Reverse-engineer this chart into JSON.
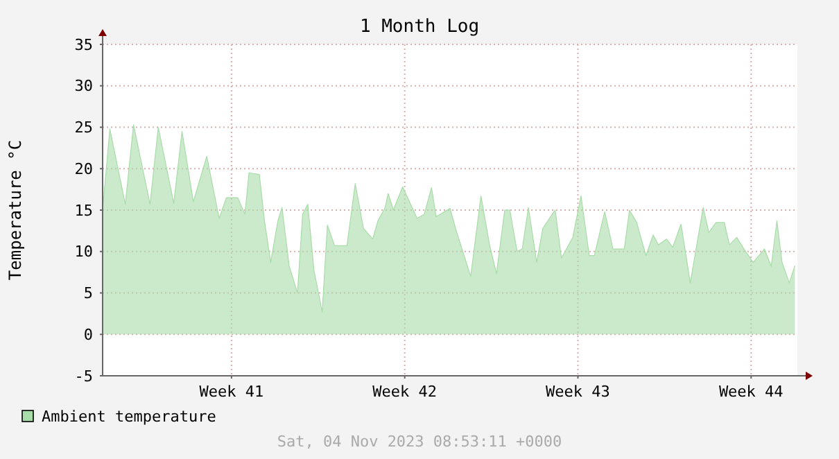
{
  "chart_data": {
    "type": "area",
    "title": "1 Month Log",
    "ylabel": "Temperature °C",
    "annotations": [
      "Sat, 04 Nov 2023 08:53:11 +0000"
    ],
    "xlim": [
      "2023-10-07T07:00",
      "2023-11-04T08:53"
    ],
    "xticks": [
      {
        "value": "2023-10-12T12:00",
        "label": "Week 41"
      },
      {
        "value": "2023-10-19T12:00",
        "label": "Week 42"
      },
      {
        "value": "2023-10-26T12:00",
        "label": "Week 43"
      },
      {
        "value": "2023-11-02T12:00",
        "label": "Week 44"
      }
    ],
    "ylim": [
      -5,
      35
    ],
    "yticks": [
      -5,
      0,
      5,
      10,
      15,
      20,
      25,
      30,
      35
    ],
    "grid": true,
    "legend": "bottom",
    "x": [
      "2023-10-07T07:00",
      "2023-10-07T14:00",
      "2023-10-08T05:00",
      "2023-10-08T13:00",
      "2023-10-09T05:00",
      "2023-10-09T13:00",
      "2023-10-10T04:00",
      "2023-10-10T12:00",
      "2023-10-10T23:00",
      "2023-10-11T12:00",
      "2023-10-12T00:00",
      "2023-10-12T07:00",
      "2023-10-12T18:00",
      "2023-10-13T01:00",
      "2023-10-13T05:00",
      "2023-10-13T15:00",
      "2023-10-13T20:00",
      "2023-10-14T02:00",
      "2023-10-14T09:00",
      "2023-10-14T13:00",
      "2023-10-14T20:00",
      "2023-10-15T04:00",
      "2023-10-15T09:00",
      "2023-10-15T14:00",
      "2023-10-15T20:00",
      "2023-10-16T04:00",
      "2023-10-16T09:00",
      "2023-10-16T16:00",
      "2023-10-17T04:00",
      "2023-10-17T12:00",
      "2023-10-17T20:00",
      "2023-10-18T05:00",
      "2023-10-18T10:00",
      "2023-10-18T17:00",
      "2023-10-18T20:00",
      "2023-10-19T01:00",
      "2023-10-19T10:00",
      "2023-10-19T16:00",
      "2023-10-20T00:00",
      "2023-10-20T07:00",
      "2023-10-20T14:00",
      "2023-10-20T18:30",
      "2023-10-21T08:00",
      "2023-10-21T13:30",
      "2023-10-22T04:00",
      "2023-10-22T14:00",
      "2023-10-22T22:00",
      "2023-10-23T05:00",
      "2023-10-23T13:00",
      "2023-10-23T18:00",
      "2023-10-24T01:00",
      "2023-10-24T06:00",
      "2023-10-24T12:00",
      "2023-10-24T20:00",
      "2023-10-25T02:00",
      "2023-10-25T11:00",
      "2023-10-25T14:00",
      "2023-10-25T20:00",
      "2023-10-26T07:00",
      "2023-10-26T15:00",
      "2023-10-26T23:00",
      "2023-10-27T04:00",
      "2023-10-27T14:00",
      "2023-10-27T22:00",
      "2023-10-28T09:00",
      "2023-10-28T14:00",
      "2023-10-28T21:00",
      "2023-10-29T06:00",
      "2023-10-29T13:00",
      "2023-10-29T18:00",
      "2023-10-30T02:00",
      "2023-10-30T08:00",
      "2023-10-30T16:00",
      "2023-10-31T01:00",
      "2023-10-31T13:30",
      "2023-10-31T19:00",
      "2023-11-01T02:00",
      "2023-11-01T10:00",
      "2023-11-01T15:00",
      "2023-11-01T22:00",
      "2023-11-02T05:00",
      "2023-11-02T14:00",
      "2023-11-03T01:00",
      "2023-11-03T07:30",
      "2023-11-03T13:00",
      "2023-11-03T18:00",
      "2023-11-04T01:00",
      "2023-11-04T06:30"
    ],
    "series": [
      {
        "name": "Ambient temperature",
        "color": "#a8dca8",
        "values": [
          15,
          24.8,
          15.7,
          25.3,
          15.7,
          25,
          15.8,
          24.5,
          16,
          21.5,
          14,
          16.5,
          16.5,
          14.5,
          19.5,
          19.3,
          13.7,
          8.7,
          13.7,
          15.3,
          8.2,
          5,
          14.5,
          15.7,
          7.7,
          2.7,
          13.2,
          10.7,
          10.7,
          18.2,
          12.8,
          11.5,
          13.7,
          15.3,
          17,
          15,
          17.8,
          16.2,
          14,
          14.5,
          17.7,
          14.2,
          15.2,
          12.7,
          7,
          16.7,
          11,
          7.3,
          15,
          15,
          10,
          10.3,
          15.3,
          8.7,
          12.8,
          14.5,
          15,
          9.2,
          11.7,
          16.7,
          9.5,
          9.5,
          14.8,
          10.3,
          10.3,
          15,
          13.5,
          9.5,
          12,
          10.8,
          11.5,
          10.5,
          13.3,
          6.2,
          15.3,
          12.3,
          13.5,
          13.5,
          10.8,
          11.7,
          10.3,
          8.7,
          10.3,
          8.2,
          13.7,
          8.7,
          6.2,
          8.3
        ]
      }
    ]
  }
}
